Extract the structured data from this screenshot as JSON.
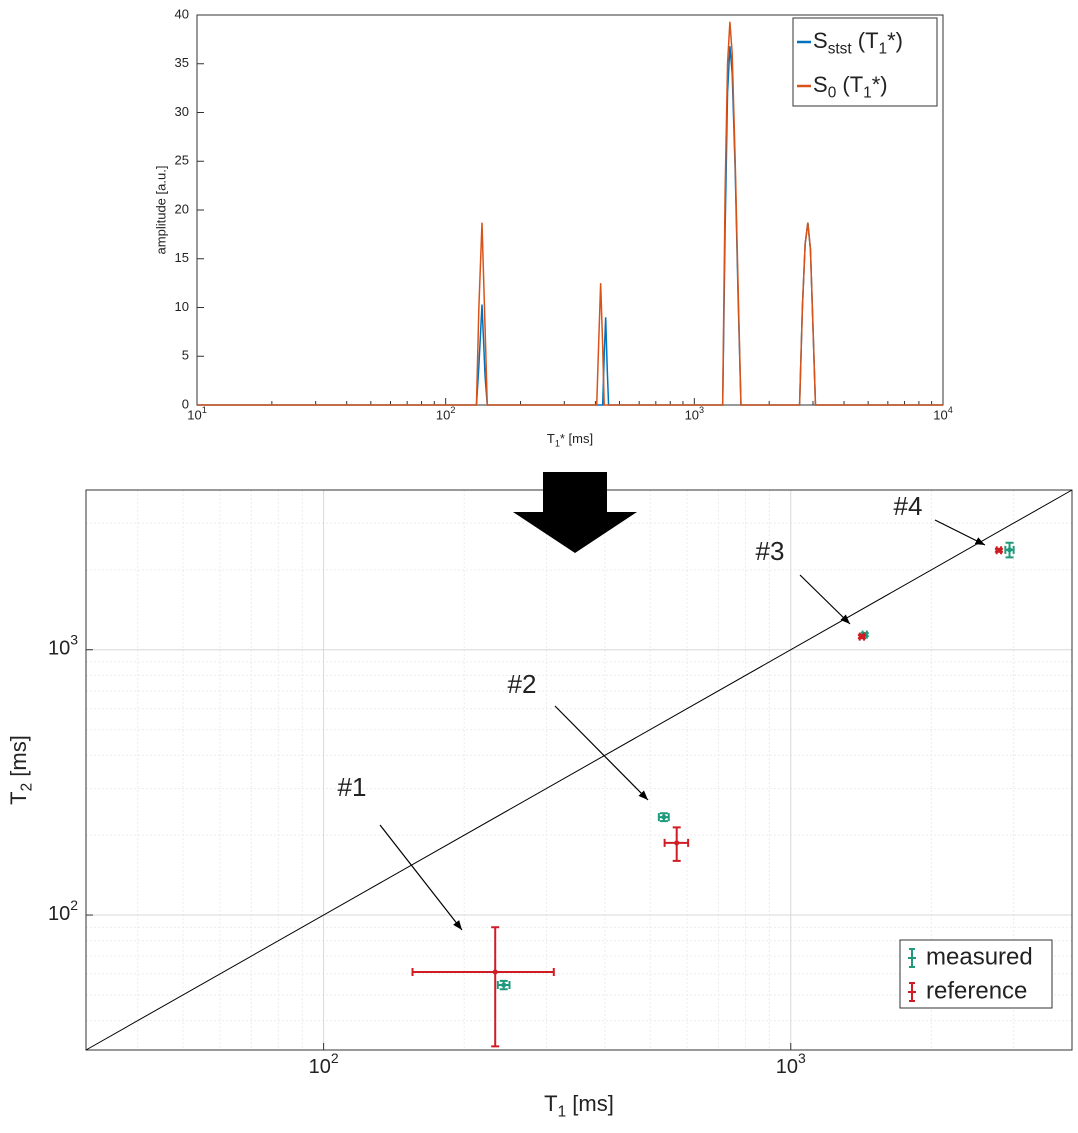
{
  "chart_data": [
    {
      "type": "line",
      "xlabel": [
        "T",
        "1",
        "* [ms]"
      ],
      "ylabel": "amplitude [a.u.]",
      "xscale": "log",
      "xlim": [
        10,
        10000
      ],
      "ylim": [
        0,
        40
      ],
      "xticks": [
        {
          "value": 10,
          "label": [
            "10",
            "1"
          ]
        },
        {
          "value": 100,
          "label": [
            "10",
            "2"
          ]
        },
        {
          "value": 1000,
          "label": [
            "10",
            "3"
          ]
        },
        {
          "value": 10000,
          "label": [
            "10",
            "4"
          ]
        }
      ],
      "yticks": [
        0,
        5,
        10,
        15,
        20,
        25,
        30,
        35,
        40
      ],
      "grid": false,
      "legend": "upper right",
      "x": [
        10,
        133,
        136,
        140,
        144,
        147,
        405,
        412,
        420,
        428,
        434,
        440,
        446,
        452,
        1300,
        1330,
        1360,
        1390,
        1420,
        1460,
        1500,
        1540,
        2650,
        2720,
        2790,
        2860,
        2930,
        3000,
        3070,
        10000
      ],
      "series": [
        {
          "name": [
            "S",
            "stst",
            " (T",
            "1",
            "*)"
          ],
          "color": "#0072bd",
          "values": [
            0,
            0,
            4,
            10.3,
            3,
            0,
            0,
            0,
            0,
            0,
            5,
            9,
            4,
            0,
            0,
            18,
            32,
            36.8,
            34,
            24,
            11,
            0,
            0,
            10,
            16.5,
            18.7,
            16,
            8,
            0,
            0
          ]
        },
        {
          "name": [
            "S",
            "0",
            " (T",
            "1",
            "*)"
          ],
          "color": "#d95319",
          "values": [
            0,
            0,
            10,
            18.7,
            8,
            0,
            0,
            6,
            12.5,
            6,
            0,
            0,
            0,
            0,
            0,
            22,
            35,
            39.3,
            36,
            25,
            12,
            0,
            0,
            10,
            16.5,
            18.7,
            16,
            8,
            0,
            0
          ]
        }
      ]
    },
    {
      "type": "scatter",
      "xlabel": [
        "T",
        "1",
        " [ms]"
      ],
      "ylabel": [
        "T",
        "2",
        " [ms]"
      ],
      "xscale": "log",
      "yscale": "log",
      "xlim": [
        31,
        4000
      ],
      "ylim": [
        31,
        4000
      ],
      "xticks": [
        {
          "value": 100,
          "label": [
            "10",
            "2"
          ]
        },
        {
          "value": 1000,
          "label": [
            "10",
            "3"
          ]
        }
      ],
      "yticks": [
        {
          "value": 100,
          "label": [
            "10",
            "2"
          ]
        },
        {
          "value": 1000,
          "label": [
            "10",
            "3"
          ]
        }
      ],
      "grid": true,
      "identity_line": true,
      "legend": "lower right",
      "annotations": [
        "#1",
        "#2",
        "#3",
        "#4"
      ],
      "series": [
        {
          "name": "measured",
          "color": "#1f9a7c",
          "x": [
            243,
            535,
            1440,
            2940
          ],
          "xerr": [
            7,
            13,
            15,
            60
          ],
          "y": [
            54.5,
            234,
            1140,
            2380
          ],
          "yerr": [
            2,
            8,
            15,
            150
          ]
        },
        {
          "name": "reference",
          "color": "#d01c24",
          "x": [
            233,
            570,
            1420,
            2790
          ],
          "xerr": [
            78,
            33,
            15,
            30
          ],
          "y": [
            61,
            187,
            1120,
            2370
          ],
          "yerr": [
            29,
            27,
            15,
            30
          ]
        }
      ]
    }
  ]
}
